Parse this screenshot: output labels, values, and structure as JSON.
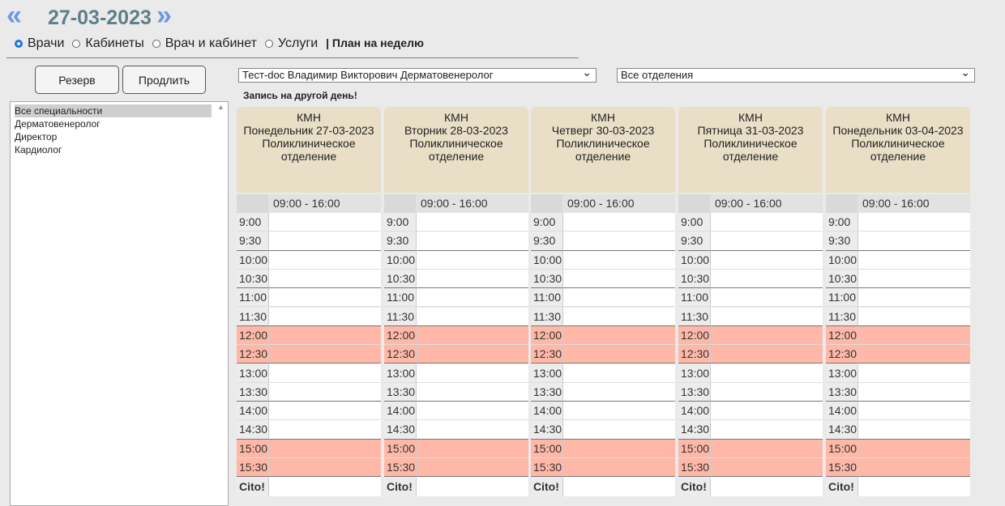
{
  "header": {
    "date": "27-03-2023"
  },
  "modes": [
    "Врачи",
    "Кабинеты",
    "Врач и кабинет",
    "Услуги"
  ],
  "week_plan": "| План на неделю",
  "buttons": [
    "Резерв",
    "Продлить"
  ],
  "specialties": [
    "Все специальности",
    "Дерматовенеролог",
    "Директор",
    "Кардиолог"
  ],
  "doctor_select": "Тест-doc Владимир Викторович Дерматовенеролог",
  "department_select": "Все отделения",
  "other_day": "Запись на другой день!",
  "days": [
    {
      "org": "КМН",
      "date": "Понедельник 27-03-2023",
      "department": "Поликлиническое отделение",
      "hours": "09:00 - 16:00"
    },
    {
      "org": "КМН",
      "date": "Вторник 28-03-2023",
      "department": "Поликлиническое отделение",
      "hours": "09:00 - 16:00"
    },
    {
      "org": "КМН",
      "date": "Четверг 30-03-2023",
      "department": "Поликлиническое отделение",
      "hours": "09:00 - 16:00"
    },
    {
      "org": "КМН",
      "date": "Пятница 31-03-2023",
      "department": "Поликлиническое отделение",
      "hours": "09:00 - 16:00"
    },
    {
      "org": "КМН",
      "date": "Понедельник 03-04-2023",
      "department": "Поликлиническое отделение",
      "hours": "09:00 - 16:00"
    }
  ],
  "slots": [
    {
      "time": "9:00",
      "busy": false
    },
    {
      "time": "9:30",
      "busy": false
    },
    {
      "time": "10:00",
      "busy": false
    },
    {
      "time": "10:30",
      "busy": false
    },
    {
      "time": "11:00",
      "busy": false
    },
    {
      "time": "11:30",
      "busy": false
    },
    {
      "time": "12:00",
      "busy": true
    },
    {
      "time": "12:30",
      "busy": true
    },
    {
      "time": "13:00",
      "busy": false
    },
    {
      "time": "13:30",
      "busy": false
    },
    {
      "time": "14:00",
      "busy": false
    },
    {
      "time": "14:30",
      "busy": false
    },
    {
      "time": "15:00",
      "busy": true
    },
    {
      "time": "15:30",
      "busy": true
    }
  ],
  "cito": "Cito!"
}
